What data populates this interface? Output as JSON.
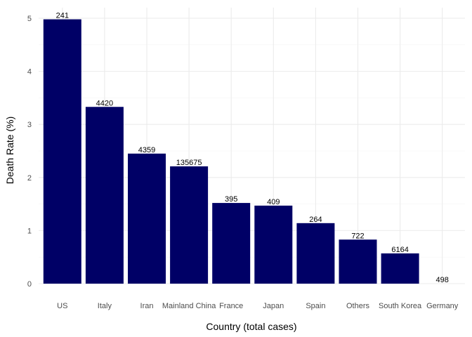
{
  "chart_data": {
    "type": "bar",
    "title": "",
    "xlabel": "Country (total cases)",
    "ylabel": "Death Rate (%)",
    "categories": [
      "US",
      "Italy",
      "Iran",
      "Mainland China",
      "France",
      "Japan",
      "Spain",
      "Others",
      "South Korea",
      "Germany"
    ],
    "values": [
      4.98,
      3.33,
      2.45,
      2.21,
      1.52,
      1.47,
      1.14,
      0.83,
      0.57,
      0.0
    ],
    "bar_labels": [
      "241",
      "4420",
      "4359",
      "135675",
      "395",
      "409",
      "264",
      "722",
      "6164",
      "498"
    ],
    "ylim": [
      0,
      5.2
    ],
    "yticks": [
      0,
      1,
      2,
      3,
      4,
      5
    ],
    "ytick_labels": [
      "0",
      "1",
      "2",
      "3",
      "4",
      "5"
    ],
    "grid": true,
    "legend": "none",
    "bar_color": "#000066"
  }
}
